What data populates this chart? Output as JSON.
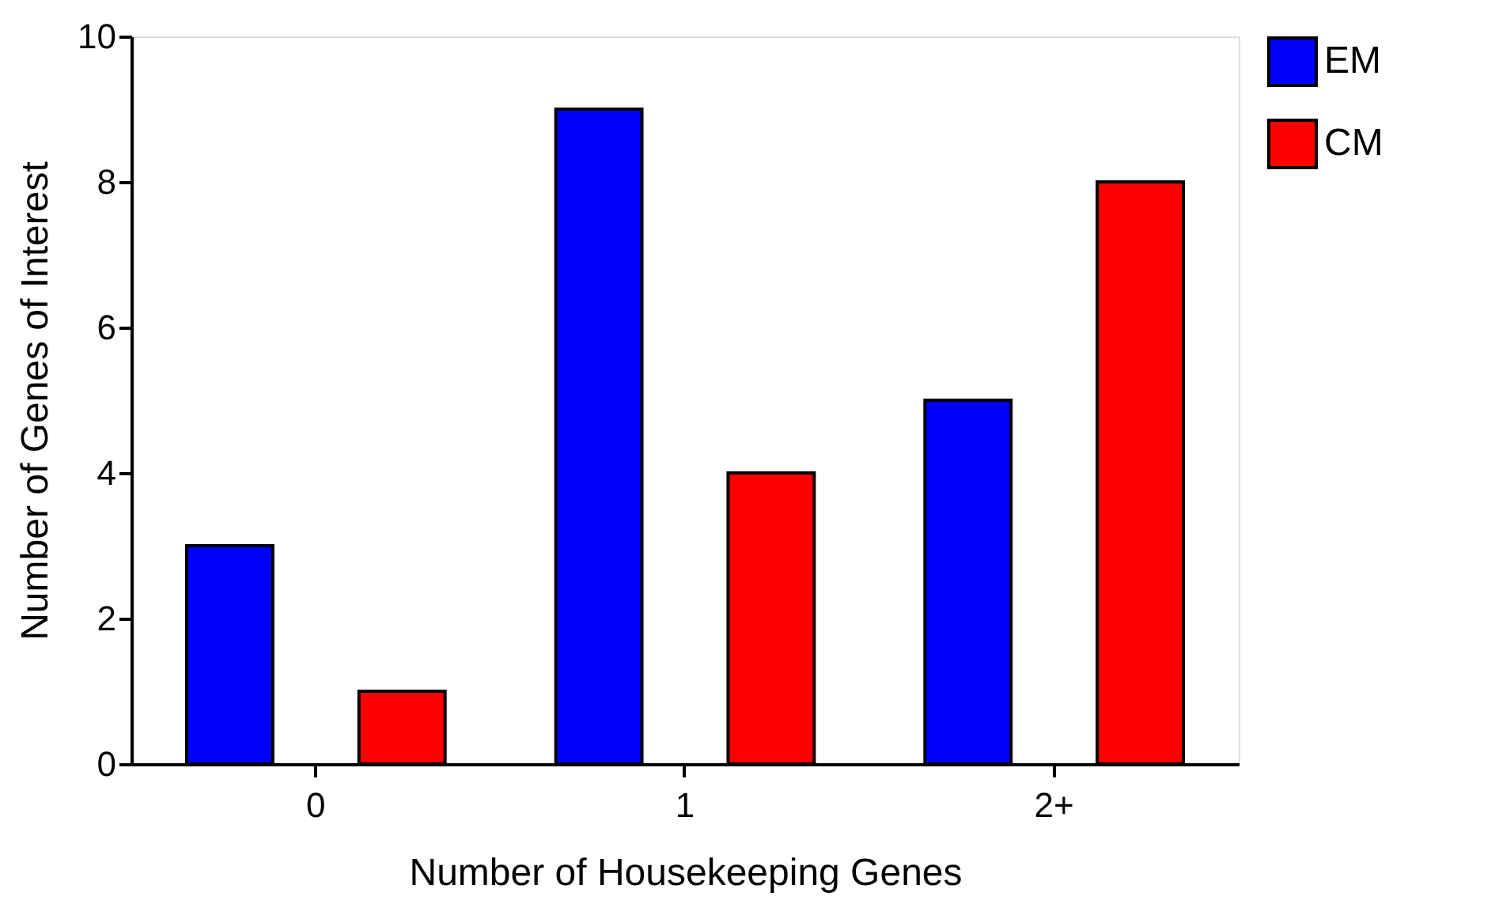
{
  "chart_data": {
    "type": "bar",
    "xlabel": "Number of Housekeeping Genes",
    "ylabel": "Number of Genes of Interest",
    "categories": [
      "0",
      "1",
      "2+"
    ],
    "series": [
      {
        "name": "EM",
        "color": "#0000ff",
        "values": [
          3,
          9,
          5
        ]
      },
      {
        "name": "CM",
        "color": "#ff0000",
        "values": [
          1,
          4,
          8
        ]
      }
    ],
    "ylim": [
      0,
      10
    ],
    "yticks": [
      0,
      2,
      4,
      6,
      8,
      10
    ],
    "grid": false,
    "legend": "right"
  }
}
